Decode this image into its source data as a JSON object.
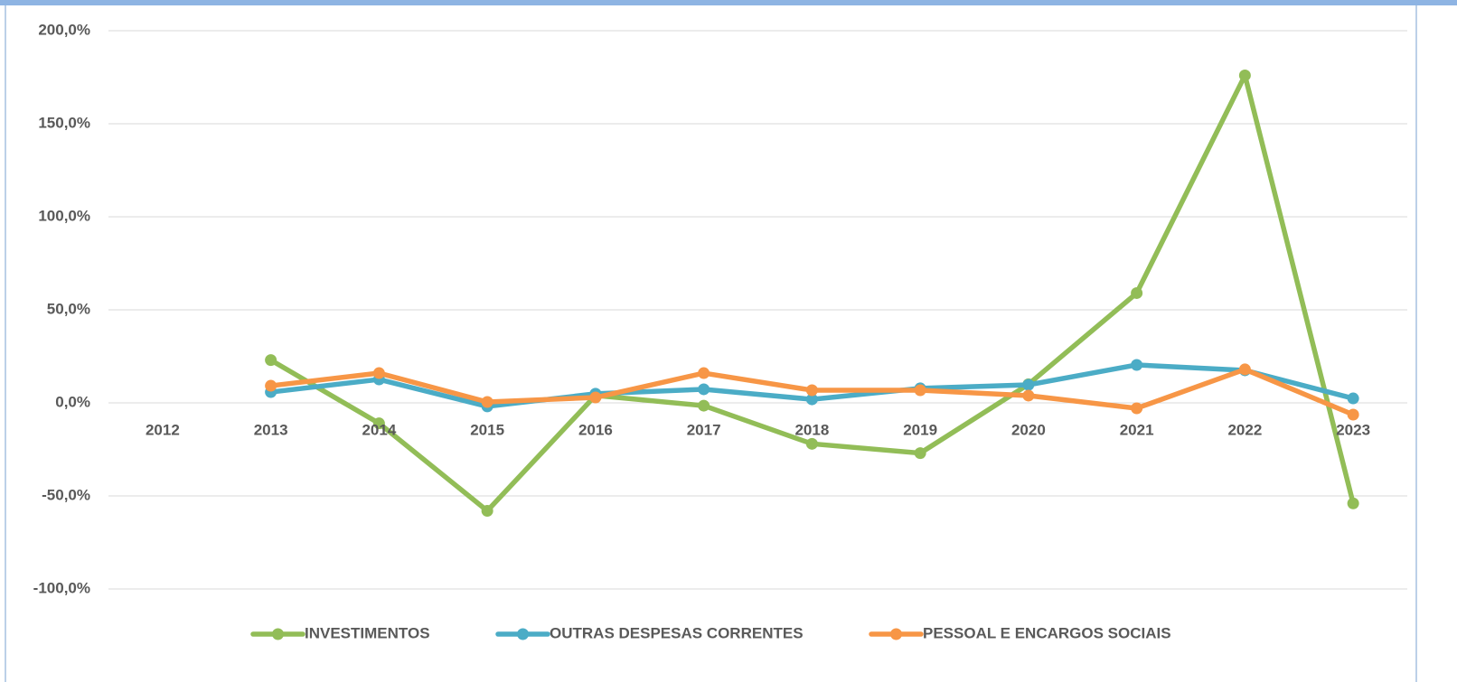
{
  "chart_data": {
    "type": "line",
    "categories": [
      "2012",
      "2013",
      "2014",
      "2015",
      "2016",
      "2017",
      "2018",
      "2019",
      "2020",
      "2021",
      "2022",
      "2023"
    ],
    "series": [
      {
        "name": "INVESTIMENTOS",
        "color": "#92bd57",
        "values": [
          null,
          23,
          -11,
          -58,
          4,
          -1.5,
          -22,
          -27,
          10,
          59,
          176,
          -54
        ]
      },
      {
        "name": "OUTRAS DESPESAS CORRENTES",
        "color": "#4bacc6",
        "values": [
          null,
          5.8,
          12.6,
          -1.9,
          4.9,
          7.3,
          1.9,
          7.8,
          9.7,
          20.4,
          17.5,
          2.4
        ]
      },
      {
        "name": "PESSOAL E ENCARGOS SOCIAIS",
        "color": "#f79646",
        "values": [
          null,
          9.2,
          16,
          0.5,
          2.9,
          16,
          6.8,
          6.8,
          3.9,
          -2.9,
          18,
          -6.3
        ]
      }
    ],
    "ylim": [
      -100,
      200
    ],
    "yticks": [
      {
        "value": -100,
        "label": "-100,0%"
      },
      {
        "value": -50,
        "label": "-50,0%"
      },
      {
        "value": 0,
        "label": "0,0%"
      },
      {
        "value": 50,
        "label": "50,0%"
      },
      {
        "value": 100,
        "label": "100,0%"
      },
      {
        "value": 150,
        "label": "150,0%"
      },
      {
        "value": 200,
        "label": "200,0%"
      }
    ],
    "grid": true,
    "legend": "bottom"
  }
}
